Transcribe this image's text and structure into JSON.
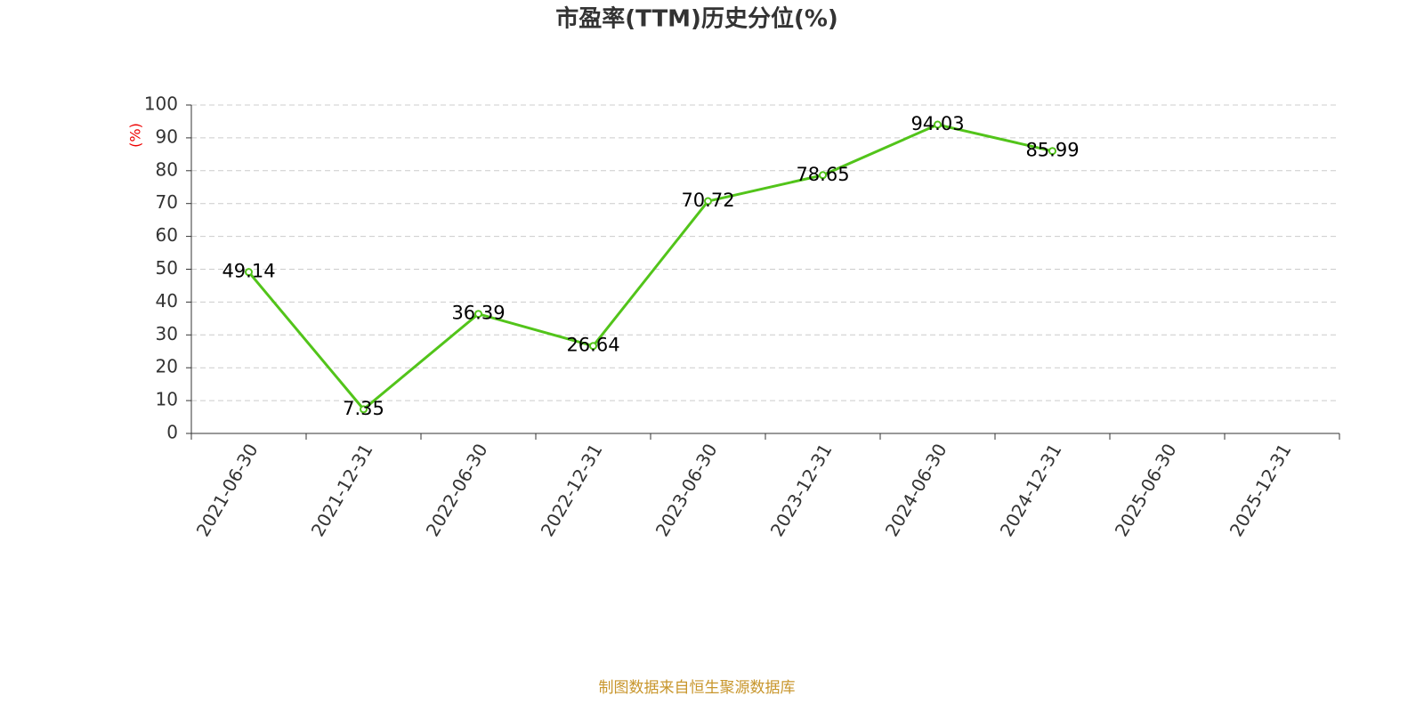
{
  "chart_data": {
    "type": "line",
    "title": "市盈率(TTM)历史分位(%)",
    "y_label": "(%)",
    "footer": "制图数据来自恒生聚源数据库",
    "categories": [
      "2021-06-30",
      "2021-12-31",
      "2022-06-30",
      "2022-12-31",
      "2023-06-30",
      "2023-12-31",
      "2024-06-30",
      "2024-12-31",
      "2025-06-30",
      "2025-12-31"
    ],
    "series": [
      {
        "name": "市盈率(TTM)历史分位",
        "color": "#52c41a",
        "values": [
          49.14,
          7.35,
          36.39,
          26.64,
          70.72,
          78.65,
          94.03,
          85.99,
          null,
          null
        ]
      }
    ],
    "ylim": [
      0,
      100
    ],
    "yticks": [
      0,
      10,
      20,
      30,
      40,
      50,
      60,
      70,
      80,
      90,
      100
    ],
    "grid": true
  }
}
